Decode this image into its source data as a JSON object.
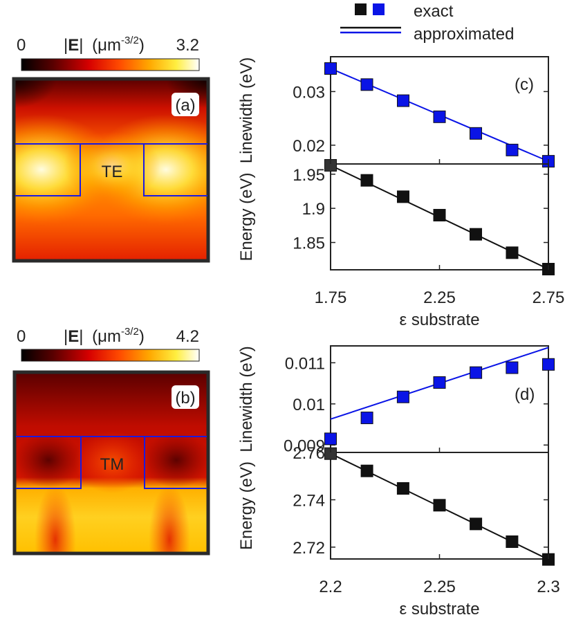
{
  "colors": {
    "blue": "#0a14e6",
    "black": "#111111",
    "axis": "#222222"
  },
  "legend": {
    "exact_label": "exact",
    "approx_label": "approximated"
  },
  "heatmaps": [
    {
      "id": "te",
      "colorbar_min": "0",
      "colorbar_max": "3.2",
      "quantity_E": "E",
      "quantity_unit": "(μm",
      "quantity_exp": "-3/2",
      "quantity_close": ")",
      "panel_label": "(a)",
      "mode_label": "TE"
    },
    {
      "id": "tm",
      "colorbar_min": "0",
      "colorbar_max": "4.2",
      "quantity_E": "E",
      "quantity_unit": "(μm",
      "quantity_exp": "-3/2",
      "quantity_close": ")",
      "panel_label": "(b)",
      "mode_label": "TM"
    }
  ],
  "chart_data": [
    {
      "type": "scatter",
      "panel": "(c)",
      "xlabel": "ε substrate",
      "xlim": [
        1.75,
        2.75
      ],
      "xticks": [
        "1.75",
        "2.25",
        "2.75"
      ],
      "top": {
        "ylabel": "Linewidth (eV)",
        "ylim": [
          0.0165,
          0.0365
        ],
        "yticks": [
          {
            "v": 0.03,
            "label": "0.03"
          },
          {
            "v": 0.02,
            "label": "0.02"
          }
        ],
        "x": [
          1.75,
          1.9167,
          2.0833,
          2.25,
          2.4167,
          2.5833,
          2.75
        ],
        "exact": [
          0.0343,
          0.0313,
          0.0283,
          0.0253,
          0.0222,
          0.0191,
          0.017
        ],
        "approx_line": [
          [
            1.75,
            0.0343
          ],
          [
            2.75,
            0.017
          ]
        ]
      },
      "bottom": {
        "ylabel": "Energy (eV)",
        "ylim": [
          1.81,
          1.965
        ],
        "yticks": [
          {
            "v": 1.95,
            "label": "1.95"
          },
          {
            "v": 1.9,
            "label": "1.9"
          },
          {
            "v": 1.85,
            "label": "1.85"
          }
        ],
        "x": [
          1.75,
          1.9167,
          2.0833,
          2.25,
          2.4167,
          2.5833,
          2.75
        ],
        "exact": [
          1.963,
          1.941,
          1.917,
          1.89,
          1.862,
          1.835,
          1.811
        ],
        "approx_line": [
          [
            1.75,
            1.963
          ],
          [
            2.75,
            1.811
          ]
        ]
      }
    },
    {
      "type": "scatter",
      "panel": "(d)",
      "xlabel": "ε substrate",
      "xlim": [
        2.2,
        2.3
      ],
      "xticks": [
        "2.2",
        "2.25",
        "2.3"
      ],
      "top": {
        "ylabel": "Linewidth (eV)",
        "ylim": [
          0.00882,
          0.01141
        ],
        "yticks": [
          {
            "v": 0.011,
            "label": "0.011"
          },
          {
            "v": 0.01,
            "label": "0.01"
          },
          {
            "v": 0.009,
            "label": "0.009"
          }
        ],
        "x": [
          2.2,
          2.2167,
          2.2333,
          2.25,
          2.2667,
          2.2833,
          2.3
        ],
        "exact": [
          0.00915,
          0.00966,
          0.01017,
          0.01052,
          0.01076,
          0.01088,
          0.01096
        ],
        "approx_line": [
          [
            2.2,
            0.00963
          ],
          [
            2.3,
            0.01137
          ]
        ]
      },
      "bottom": {
        "ylabel": "Energy (eV)",
        "ylim": [
          2.715,
          2.76
        ],
        "yticks": [
          {
            "v": 2.76,
            "label": "2.76"
          },
          {
            "v": 2.74,
            "label": "2.74"
          },
          {
            "v": 2.72,
            "label": "2.72"
          }
        ],
        "x": [
          2.2,
          2.2167,
          2.2333,
          2.25,
          2.2667,
          2.2833,
          2.3
        ],
        "exact": [
          2.7595,
          2.7522,
          2.7448,
          2.7377,
          2.7298,
          2.7223,
          2.7148
        ],
        "approx_line": [
          [
            2.2,
            2.7595
          ],
          [
            2.3,
            2.7148
          ]
        ]
      }
    }
  ]
}
